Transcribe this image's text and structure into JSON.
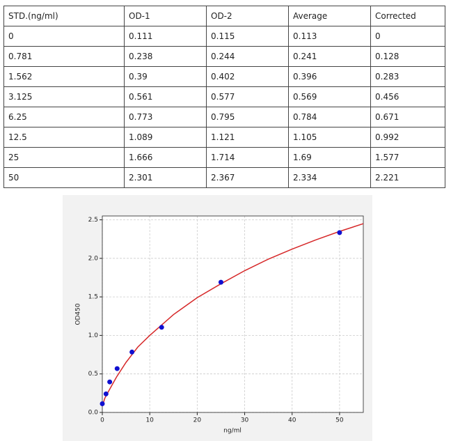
{
  "table": {
    "header": [
      "STD.(ng/ml)",
      "OD-1",
      "OD-2",
      "Average",
      "Corrected"
    ],
    "rows": [
      [
        "0",
        "0.111",
        "0.115",
        "0.113",
        "0"
      ],
      [
        "0.781",
        "0.238",
        "0.244",
        "0.241",
        "0.128"
      ],
      [
        "1.562",
        "0.39",
        "0.402",
        "0.396",
        "0.283"
      ],
      [
        "3.125",
        "0.561",
        "0.577",
        "0.569",
        "0.456"
      ],
      [
        "6.25",
        "0.773",
        "0.795",
        "0.784",
        "0.671"
      ],
      [
        "12.5",
        "1.089",
        "1.121",
        "1.105",
        "0.992"
      ],
      [
        "25",
        "1.666",
        "1.714",
        "1.69",
        "1.577"
      ],
      [
        "50",
        "2.301",
        "2.367",
        "2.334",
        "2.221"
      ]
    ]
  },
  "chart_data": {
    "type": "scatter",
    "x_label": "ng/ml",
    "y_label": "OD450",
    "x": [
      0,
      0.781,
      1.562,
      3.125,
      6.25,
      12.5,
      25,
      50
    ],
    "values": [
      0.113,
      0.241,
      0.396,
      0.569,
      0.784,
      1.105,
      1.69,
      2.334
    ],
    "color": "#1010d0",
    "fit": {
      "color": "#d62728",
      "x": [
        0,
        0.5,
        1,
        2,
        3,
        5,
        7.5,
        10,
        15,
        20,
        25,
        30,
        35,
        40,
        45,
        50,
        55
      ],
      "values": [
        0.08,
        0.18,
        0.24,
        0.35,
        0.46,
        0.65,
        0.85,
        1.0,
        1.27,
        1.49,
        1.67,
        1.84,
        1.99,
        2.12,
        2.24,
        2.35,
        2.45
      ]
    },
    "xlim": [
      0,
      55
    ],
    "xticks": [
      0,
      10,
      20,
      30,
      40,
      50
    ],
    "ylim": [
      0,
      2.55
    ],
    "yticks": [
      {
        "value": 0,
        "label": "0.0"
      },
      0.5,
      {
        "value": 1,
        "label": "1.0"
      },
      1.5,
      {
        "value": 2,
        "label": "2.0"
      },
      2.5
    ],
    "grid": true
  }
}
